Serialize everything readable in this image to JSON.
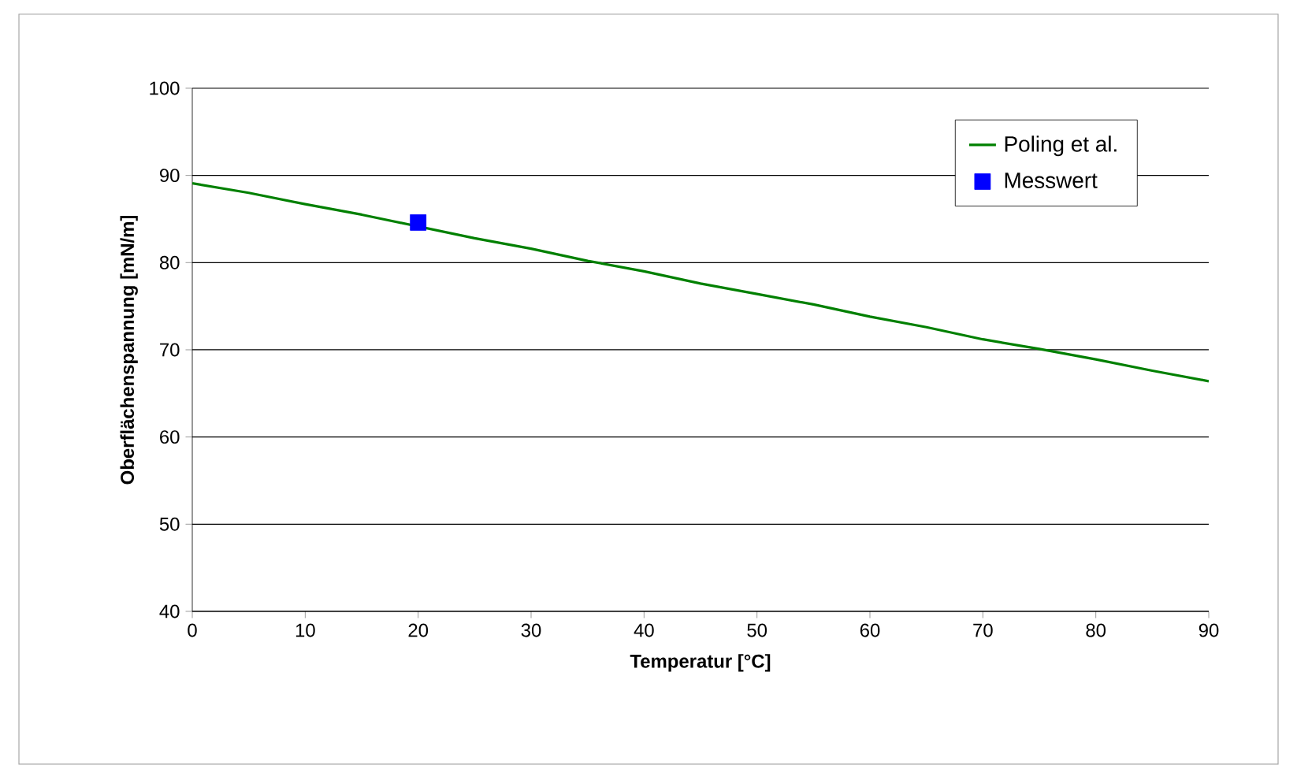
{
  "chart_data": {
    "type": "line",
    "xlabel": "Temperatur [°C]",
    "ylabel": "Oberflächenspannung [mN/m]",
    "xlim": [
      0,
      90
    ],
    "xticks": [
      0,
      10,
      20,
      30,
      40,
      50,
      60,
      70,
      80,
      90
    ],
    "ylim": [
      40,
      100
    ],
    "yticks": [
      40,
      50,
      60,
      70,
      80,
      90,
      100
    ],
    "grid": "y",
    "legend": "top right",
    "series": [
      {
        "name": "Poling et al.",
        "color": "#008000",
        "marker": "none",
        "x": [
          0,
          5,
          10,
          15,
          25,
          30,
          35,
          40,
          45,
          50,
          55,
          60,
          65,
          70,
          75,
          80,
          85,
          90
        ],
        "values": [
          89.1,
          88.0,
          86.7,
          85.5,
          82.8,
          81.6,
          80.2,
          79.0,
          77.6,
          76.4,
          75.2,
          73.8,
          72.6,
          71.2,
          70.1,
          68.9,
          67.6,
          66.4
        ]
      },
      {
        "name": "Messwert",
        "type": "scatter",
        "color": "#0000ff",
        "marker": "square",
        "x": [
          20
        ],
        "values": [
          84.6
        ]
      }
    ]
  }
}
